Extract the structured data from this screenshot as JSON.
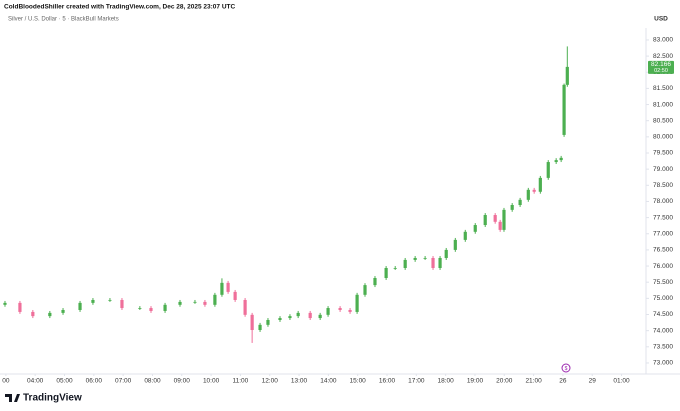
{
  "header": {
    "credit": "ColdBloodedShiller created with TradingView.com, Dec 28, 2025 23:07 UTC",
    "brand": "TradingView"
  },
  "chart_data": {
    "type": "candlestick",
    "title": "Silver / U.S. Dollar · 5 · BlackBull Markets",
    "y_axis_label": "USD",
    "up_color": "#4caf50",
    "down_color": "#ef6f9a",
    "grid": false,
    "price_label": 82.166,
    "countdown": "02:50",
    "price_label_color": "#4caf50",
    "x": [
      2.97,
      3.48,
      3.92,
      4.5,
      4.95,
      5.53,
      5.97,
      6.55,
      6.96,
      7.57,
      7.95,
      8.43,
      8.94,
      9.45,
      9.79,
      10.13,
      10.37,
      10.58,
      10.82,
      11.16,
      11.4,
      11.67,
      11.94,
      12.35,
      12.69,
      12.97,
      13.38,
      13.72,
      13.99,
      14.4,
      14.74,
      14.98,
      15.25,
      15.59,
      15.97,
      16.28,
      16.62,
      16.96,
      17.3,
      17.57,
      17.81,
      18.02,
      18.33,
      18.67,
      19.01,
      19.35,
      19.69,
      19.86,
      19.99,
      20.27,
      20.54,
      20.82,
      21.02,
      21.23,
      21.5,
      21.77,
      21.94,
      22.04,
      22.15
    ],
    "open": [
      74.8,
      74.86,
      74.58,
      74.45,
      74.55,
      74.64,
      74.86,
      74.95,
      74.95,
      74.7,
      74.7,
      74.61,
      74.8,
      74.89,
      74.89,
      74.8,
      75.11,
      75.48,
      75.2,
      74.95,
      74.49,
      74.02,
      74.18,
      74.33,
      74.39,
      74.45,
      74.55,
      74.39,
      74.49,
      74.7,
      74.64,
      74.58,
      75.11,
      75.41,
      75.63,
      75.94,
      75.94,
      76.19,
      76.25,
      76.25,
      75.94,
      76.25,
      76.5,
      76.81,
      77.06,
      77.27,
      77.58,
      77.37,
      77.12,
      77.74,
      77.89,
      78.05,
      78.36,
      78.3,
      78.73,
      79.22,
      79.28,
      80.06,
      81.61
    ],
    "high": [
      74.92,
      74.92,
      74.64,
      74.61,
      74.7,
      74.92,
      75.01,
      75.01,
      75.01,
      74.76,
      74.76,
      74.86,
      74.95,
      74.95,
      74.95,
      75.17,
      75.62,
      75.54,
      75.26,
      75.01,
      74.55,
      74.24,
      74.39,
      74.45,
      74.51,
      74.61,
      74.61,
      74.55,
      74.76,
      74.76,
      74.7,
      75.17,
      75.47,
      75.69,
      76.0,
      76.0,
      76.25,
      76.31,
      76.31,
      76.31,
      76.31,
      76.56,
      76.87,
      77.12,
      77.33,
      77.64,
      77.64,
      77.43,
      77.8,
      77.95,
      78.11,
      78.42,
      78.42,
      78.79,
      79.28,
      79.34,
      79.41,
      81.65,
      82.8
    ],
    "low": [
      74.74,
      74.52,
      74.39,
      74.39,
      74.49,
      74.58,
      74.8,
      74.89,
      74.64,
      74.64,
      74.55,
      74.55,
      74.74,
      74.83,
      74.74,
      74.74,
      75.05,
      75.14,
      74.89,
      74.43,
      73.62,
      73.96,
      74.12,
      74.27,
      74.33,
      74.39,
      74.33,
      74.33,
      74.43,
      74.58,
      74.52,
      74.52,
      75.05,
      75.35,
      75.57,
      75.88,
      75.88,
      76.13,
      76.19,
      75.88,
      75.88,
      76.19,
      76.44,
      76.75,
      77.0,
      77.21,
      77.31,
      77.06,
      77.06,
      77.68,
      77.83,
      77.99,
      78.24,
      78.24,
      78.67,
      79.16,
      79.22,
      80.0,
      81.55
    ],
    "close": [
      74.86,
      74.58,
      74.45,
      74.55,
      74.64,
      74.86,
      74.95,
      74.95,
      74.7,
      74.7,
      74.61,
      74.8,
      74.89,
      74.89,
      74.8,
      75.11,
      75.48,
      75.2,
      74.95,
      74.49,
      74.02,
      74.18,
      74.33,
      74.39,
      74.45,
      74.55,
      74.39,
      74.49,
      74.7,
      74.64,
      74.58,
      75.11,
      75.41,
      75.63,
      75.94,
      75.94,
      76.19,
      76.25,
      76.25,
      75.94,
      76.25,
      76.5,
      76.81,
      77.06,
      77.27,
      77.58,
      77.37,
      77.12,
      77.74,
      77.89,
      78.05,
      78.36,
      78.3,
      78.73,
      79.22,
      79.28,
      79.35,
      81.61,
      82.166
    ],
    "xlim": [
      2.8,
      24.8
    ],
    "xticks": [
      {
        "value": 3,
        "label": "00"
      },
      {
        "value": 4,
        "label": "04:00"
      },
      {
        "value": 5,
        "label": "05:00"
      },
      {
        "value": 6,
        "label": "06:00"
      },
      {
        "value": 7,
        "label": "07:00"
      },
      {
        "value": 8,
        "label": "08:00"
      },
      {
        "value": 9,
        "label": "09:00"
      },
      {
        "value": 10,
        "label": "10:00"
      },
      {
        "value": 11,
        "label": "11:00"
      },
      {
        "value": 12,
        "label": "12:00"
      },
      {
        "value": 13,
        "label": "13:00"
      },
      {
        "value": 14,
        "label": "14:00"
      },
      {
        "value": 15,
        "label": "15:00"
      },
      {
        "value": 16,
        "label": "16:00"
      },
      {
        "value": 17,
        "label": "17:00"
      },
      {
        "value": 18,
        "label": "18:00"
      },
      {
        "value": 19,
        "label": "19:00"
      },
      {
        "value": 20,
        "label": "20:00"
      },
      {
        "value": 21,
        "label": "21:00"
      },
      {
        "value": 22,
        "label": "26"
      },
      {
        "value": 23,
        "label": "29"
      },
      {
        "value": 24,
        "label": "01:00"
      }
    ],
    "ylim": [
      72.72,
      83.37
    ],
    "yticks": [
      {
        "value": 73,
        "label": "73.000"
      },
      {
        "value": 73.5,
        "label": "73.500"
      },
      {
        "value": 74,
        "label": "74.000"
      },
      {
        "value": 74.5,
        "label": "74.500"
      },
      {
        "value": 75,
        "label": "75.000"
      },
      {
        "value": 75.5,
        "label": "75.500"
      },
      {
        "value": 76,
        "label": "76.000"
      },
      {
        "value": 76.5,
        "label": "76.500"
      },
      {
        "value": 77,
        "label": "77.000"
      },
      {
        "value": 77.5,
        "label": "77.500"
      },
      {
        "value": 78,
        "label": "78.000"
      },
      {
        "value": 78.5,
        "label": "78.500"
      },
      {
        "value": 79,
        "label": "79.000"
      },
      {
        "value": 79.5,
        "label": "79.500"
      },
      {
        "value": 80,
        "label": "80.000"
      },
      {
        "value": 80.5,
        "label": "80.500"
      },
      {
        "value": 81,
        "label": "81.000"
      },
      {
        "value": 81.5,
        "label": "81.500"
      },
      {
        "value": 82,
        "label": "82.000"
      },
      {
        "value": 82.5,
        "label": "82.500"
      },
      {
        "value": 83,
        "label": "83.000"
      }
    ]
  }
}
